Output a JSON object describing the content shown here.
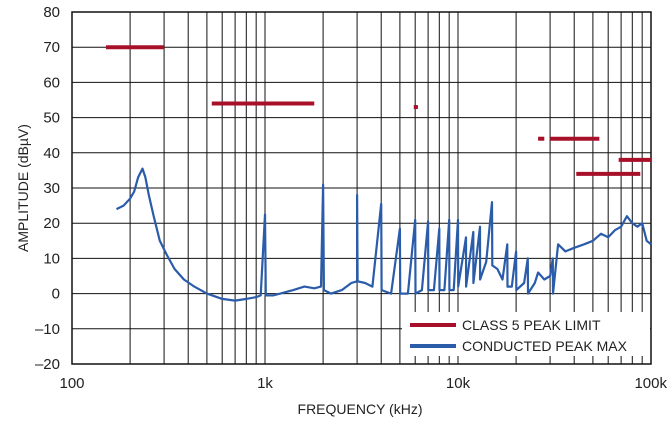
{
  "chart_data": {
    "type": "line",
    "title": "",
    "xlabel": "FREQUENCY (kHz)",
    "ylabel": "AMPLITUDE (dBµV)",
    "x_scale": "log",
    "xlim": [
      100,
      100000
    ],
    "ylim": [
      -20,
      80
    ],
    "grid": true,
    "x_ticks": [
      {
        "value": 100,
        "label": "100"
      },
      {
        "value": 1000,
        "label": "1k"
      },
      {
        "value": 10000,
        "label": "10k"
      },
      {
        "value": 100000,
        "label": "100k"
      }
    ],
    "y_ticks": [
      {
        "value": 80,
        "label": "80"
      },
      {
        "value": 70,
        "label": "70"
      },
      {
        "value": 60,
        "label": "60"
      },
      {
        "value": 50,
        "label": "50"
      },
      {
        "value": 40,
        "label": "40"
      },
      {
        "value": 30,
        "label": "30"
      },
      {
        "value": 20,
        "label": "20"
      },
      {
        "value": 10,
        "label": "10"
      },
      {
        "value": 0,
        "label": "0"
      },
      {
        "value": -10,
        "label": "–10"
      },
      {
        "value": -20,
        "label": "–20"
      }
    ],
    "legend_position": "bottom-right",
    "colors": {
      "limit": "#a8102a",
      "measured": "#2a5caa",
      "grid": "#111111"
    },
    "limit_series": {
      "name": "CLASS 5 PEAK LIMIT",
      "segments": [
        {
          "x": [
            150,
            300
          ],
          "y": 70
        },
        {
          "x": [
            530,
            1800
          ],
          "y": 54
        },
        {
          "x": [
            5900,
            6200
          ],
          "y": 53
        },
        {
          "x": [
            26000,
            28000
          ],
          "y": 44
        },
        {
          "x": [
            30000,
            54000
          ],
          "y": 44
        },
        {
          "x": [
            41000,
            88000
          ],
          "y": 34
        },
        {
          "x": [
            68000,
            100000
          ],
          "y": 38
        }
      ]
    },
    "measured_series": {
      "name": "CONDUCTED PEAK MAX",
      "points": [
        [
          170,
          24
        ],
        [
          185,
          25
        ],
        [
          200,
          27
        ],
        [
          210,
          29
        ],
        [
          220,
          33
        ],
        [
          232,
          35.5
        ],
        [
          240,
          33
        ],
        [
          250,
          28
        ],
        [
          265,
          22
        ],
        [
          285,
          15
        ],
        [
          310,
          11
        ],
        [
          340,
          7
        ],
        [
          380,
          4
        ],
        [
          430,
          2
        ],
        [
          500,
          0
        ],
        [
          600,
          -1.5
        ],
        [
          700,
          -2
        ],
        [
          800,
          -1.5
        ],
        [
          900,
          -1
        ],
        [
          950,
          -0.5
        ],
        [
          1000,
          22.5
        ],
        [
          1010,
          -0.5
        ],
        [
          1100,
          -0.5
        ],
        [
          1200,
          0
        ],
        [
          1400,
          1
        ],
        [
          1600,
          2
        ],
        [
          1800,
          1.5
        ],
        [
          1950,
          2
        ],
        [
          2000,
          31
        ],
        [
          2020,
          1
        ],
        [
          2200,
          0
        ],
        [
          2500,
          1
        ],
        [
          2800,
          3
        ],
        [
          3000,
          3.5
        ],
        [
          3000,
          28
        ],
        [
          3020,
          3.5
        ],
        [
          3300,
          3
        ],
        [
          3600,
          2
        ],
        [
          4000,
          25.5
        ],
        [
          4020,
          1
        ],
        [
          4500,
          0
        ],
        [
          5000,
          18.5
        ],
        [
          5020,
          0
        ],
        [
          5500,
          0
        ],
        [
          6000,
          21
        ],
        [
          6020,
          0
        ],
        [
          6500,
          1
        ],
        [
          7000,
          20.5
        ],
        [
          7020,
          1
        ],
        [
          7500,
          1
        ],
        [
          8000,
          18.5
        ],
        [
          8020,
          1
        ],
        [
          8500,
          1
        ],
        [
          9000,
          21
        ],
        [
          9020,
          1
        ],
        [
          9500,
          1
        ],
        [
          10000,
          21
        ],
        [
          10020,
          2
        ],
        [
          11000,
          16
        ],
        [
          11020,
          2
        ],
        [
          12000,
          17.5
        ],
        [
          12020,
          3
        ],
        [
          13000,
          19
        ],
        [
          13020,
          4
        ],
        [
          14000,
          9
        ],
        [
          15000,
          26
        ],
        [
          15050,
          8
        ],
        [
          16000,
          7
        ],
        [
          17000,
          4
        ],
        [
          18000,
          14
        ],
        [
          18050,
          2
        ],
        [
          19000,
          2
        ],
        [
          20000,
          12
        ],
        [
          20050,
          1
        ],
        [
          22000,
          3
        ],
        [
          23000,
          10
        ],
        [
          23050,
          0
        ],
        [
          25000,
          3
        ],
        [
          26000,
          6
        ],
        [
          28000,
          4
        ],
        [
          30000,
          5
        ],
        [
          31000,
          10
        ],
        [
          31050,
          0
        ],
        [
          33000,
          14
        ],
        [
          36000,
          12
        ],
        [
          40000,
          13
        ],
        [
          45000,
          14
        ],
        [
          50000,
          15
        ],
        [
          55000,
          17
        ],
        [
          60000,
          16
        ],
        [
          65000,
          18
        ],
        [
          70000,
          19
        ],
        [
          75000,
          22
        ],
        [
          80000,
          20
        ],
        [
          85000,
          19
        ],
        [
          90000,
          20
        ],
        [
          95000,
          15
        ],
        [
          100000,
          14
        ]
      ]
    }
  }
}
